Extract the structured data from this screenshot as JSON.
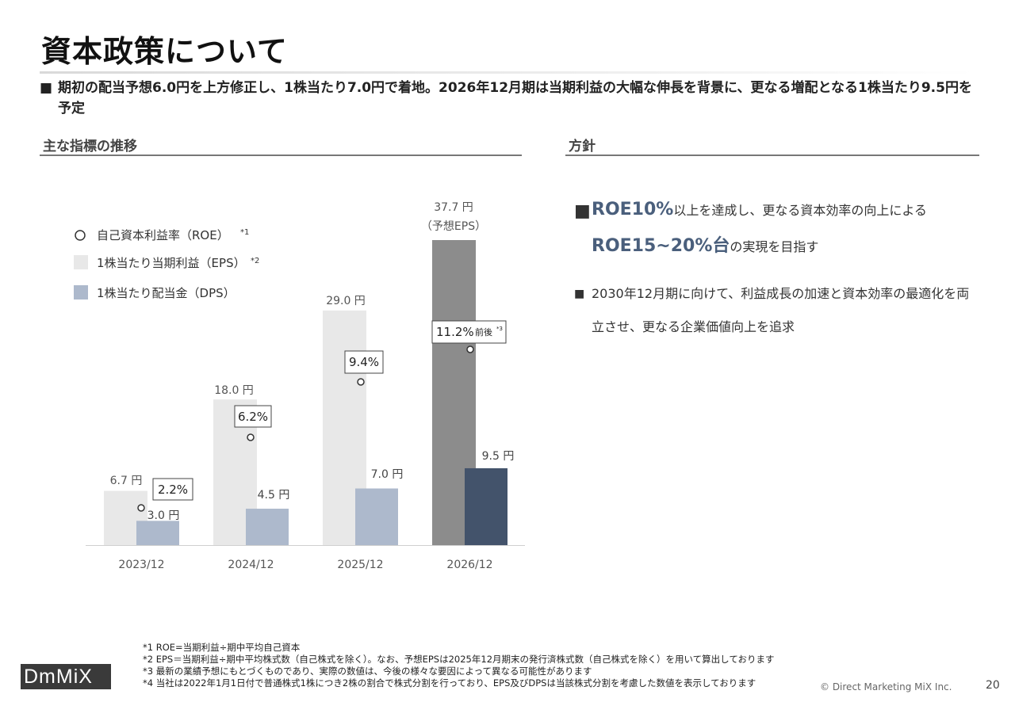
{
  "page": {
    "title": "資本政策について",
    "summary_bullet": "■",
    "summary": "期初の配当予想6.0円を上方修正し、1株当たり7.0円で着地。2026年12月期は当期利益の大幅な伸長を背景に、更なる増配となる1株当たり9.5円を予定"
  },
  "left_section": {
    "heading": "主な指標の推移"
  },
  "right_section": {
    "heading": "方針",
    "bullet1": {
      "marker": "■",
      "highlight1": "ROE10%",
      "text1": "以上を達成し、更なる資本効率の向上による",
      "highlight2": "ROE15~20%台",
      "text2": "の実現を目指す"
    },
    "bullet2": {
      "marker": "■",
      "text": "2030年12月期に向けて、利益成長の加速と資本効率の最適化を両立させ、更なる企業価値向上を追求"
    }
  },
  "chart_data": {
    "type": "bar",
    "categories": [
      "2023/12",
      "2024/12",
      "2025/12",
      "2026/12"
    ],
    "series": [
      {
        "name": "1株当たり当期利益（EPS）",
        "legend_sup": "*2",
        "values": [
          6.7,
          18.0,
          29.0,
          37.7
        ],
        "labels": [
          "6.7 円",
          "18.0 円",
          "29.0 円",
          "37.7 円"
        ],
        "color": "#e8e8e8",
        "forecast_color": "#8c8c8c"
      },
      {
        "name": "1株当たり配当金（DPS）",
        "legend_sup": "",
        "values": [
          3.0,
          4.5,
          7.0,
          9.5
        ],
        "labels": [
          "3.0 円",
          "4.5 円",
          "7.0 円",
          "9.5 円"
        ],
        "color": "#adb9cc",
        "forecast_color": "#43536b"
      }
    ],
    "roe": {
      "name": "自己資本利益率（ROE）",
      "legend_sup": "*1",
      "values": [
        2.2,
        6.2,
        9.4,
        11.2
      ],
      "labels": [
        "2.2%",
        "6.2%",
        "9.4%",
        "11.2%"
      ],
      "last_label_suffix": "前後",
      "last_label_sup": "*3"
    },
    "forecast_note": "（予想EPS）",
    "ylim": [
      0,
      40
    ]
  },
  "footnotes": [
    "*1  ROE=当期利益÷期中平均自己資本",
    "*2  EPS＝当期利益÷期中平均株式数（自己株式を除く）。なお、予想EPSは2025年12月期末の発行済株式数（自己株式を除く）を用いて算出しております",
    "*3  最新の業績予想にもとづくものであり、実際の数値は、今後の様々な要因によって異なる可能性があります",
    "*4  当社は2022年1月1日付で普通株式1株につき2株の割合で株式分割を行っており、EPS及びDPSは当該株式分割を考慮した数値を表示しております"
  ],
  "footer": {
    "logo": "DmMiX",
    "copyright": "© Direct Marketing MiX Inc.",
    "page_number": "20"
  }
}
